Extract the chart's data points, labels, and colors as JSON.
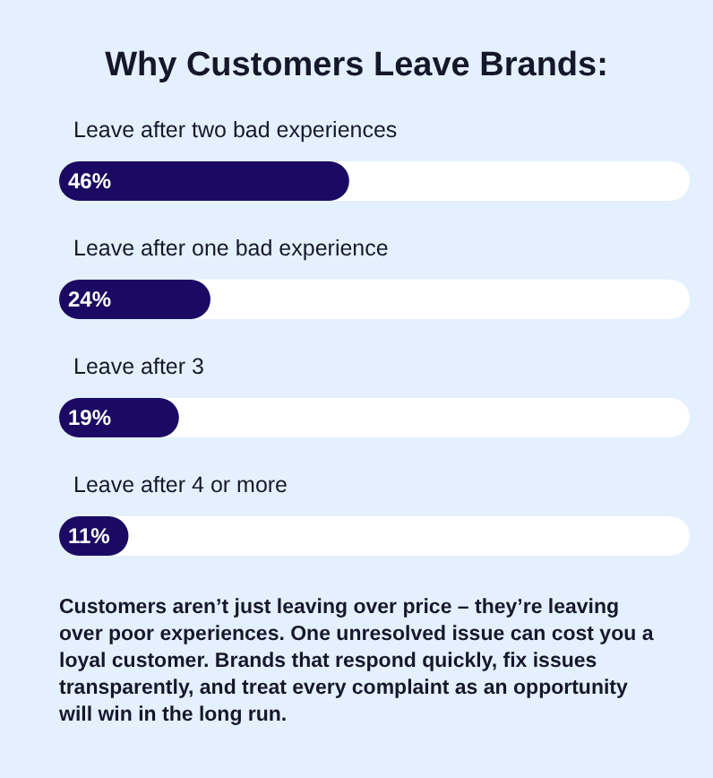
{
  "chart_data": {
    "type": "bar",
    "orientation": "horizontal",
    "title": "Why Customers Leave Brands:",
    "categories": [
      "Leave after two bad experiences",
      "Leave after one bad experience",
      "Leave after 3",
      "Leave after 4 or more"
    ],
    "values": [
      46,
      24,
      19,
      11
    ],
    "value_labels": [
      "46%",
      "24%",
      "19%",
      "11%"
    ],
    "color": "#1b0a63",
    "xlim": [
      0,
      100
    ],
    "tick_labels": false,
    "annotations": [
      "Customers aren’t just leaving over price – they’re leaving over poor experiences. One unresolved issue can cost you a loyal customer. Brands that respond quickly, fix issues transparently, and treat every complaint as an opportunity will win in the long run."
    ]
  }
}
